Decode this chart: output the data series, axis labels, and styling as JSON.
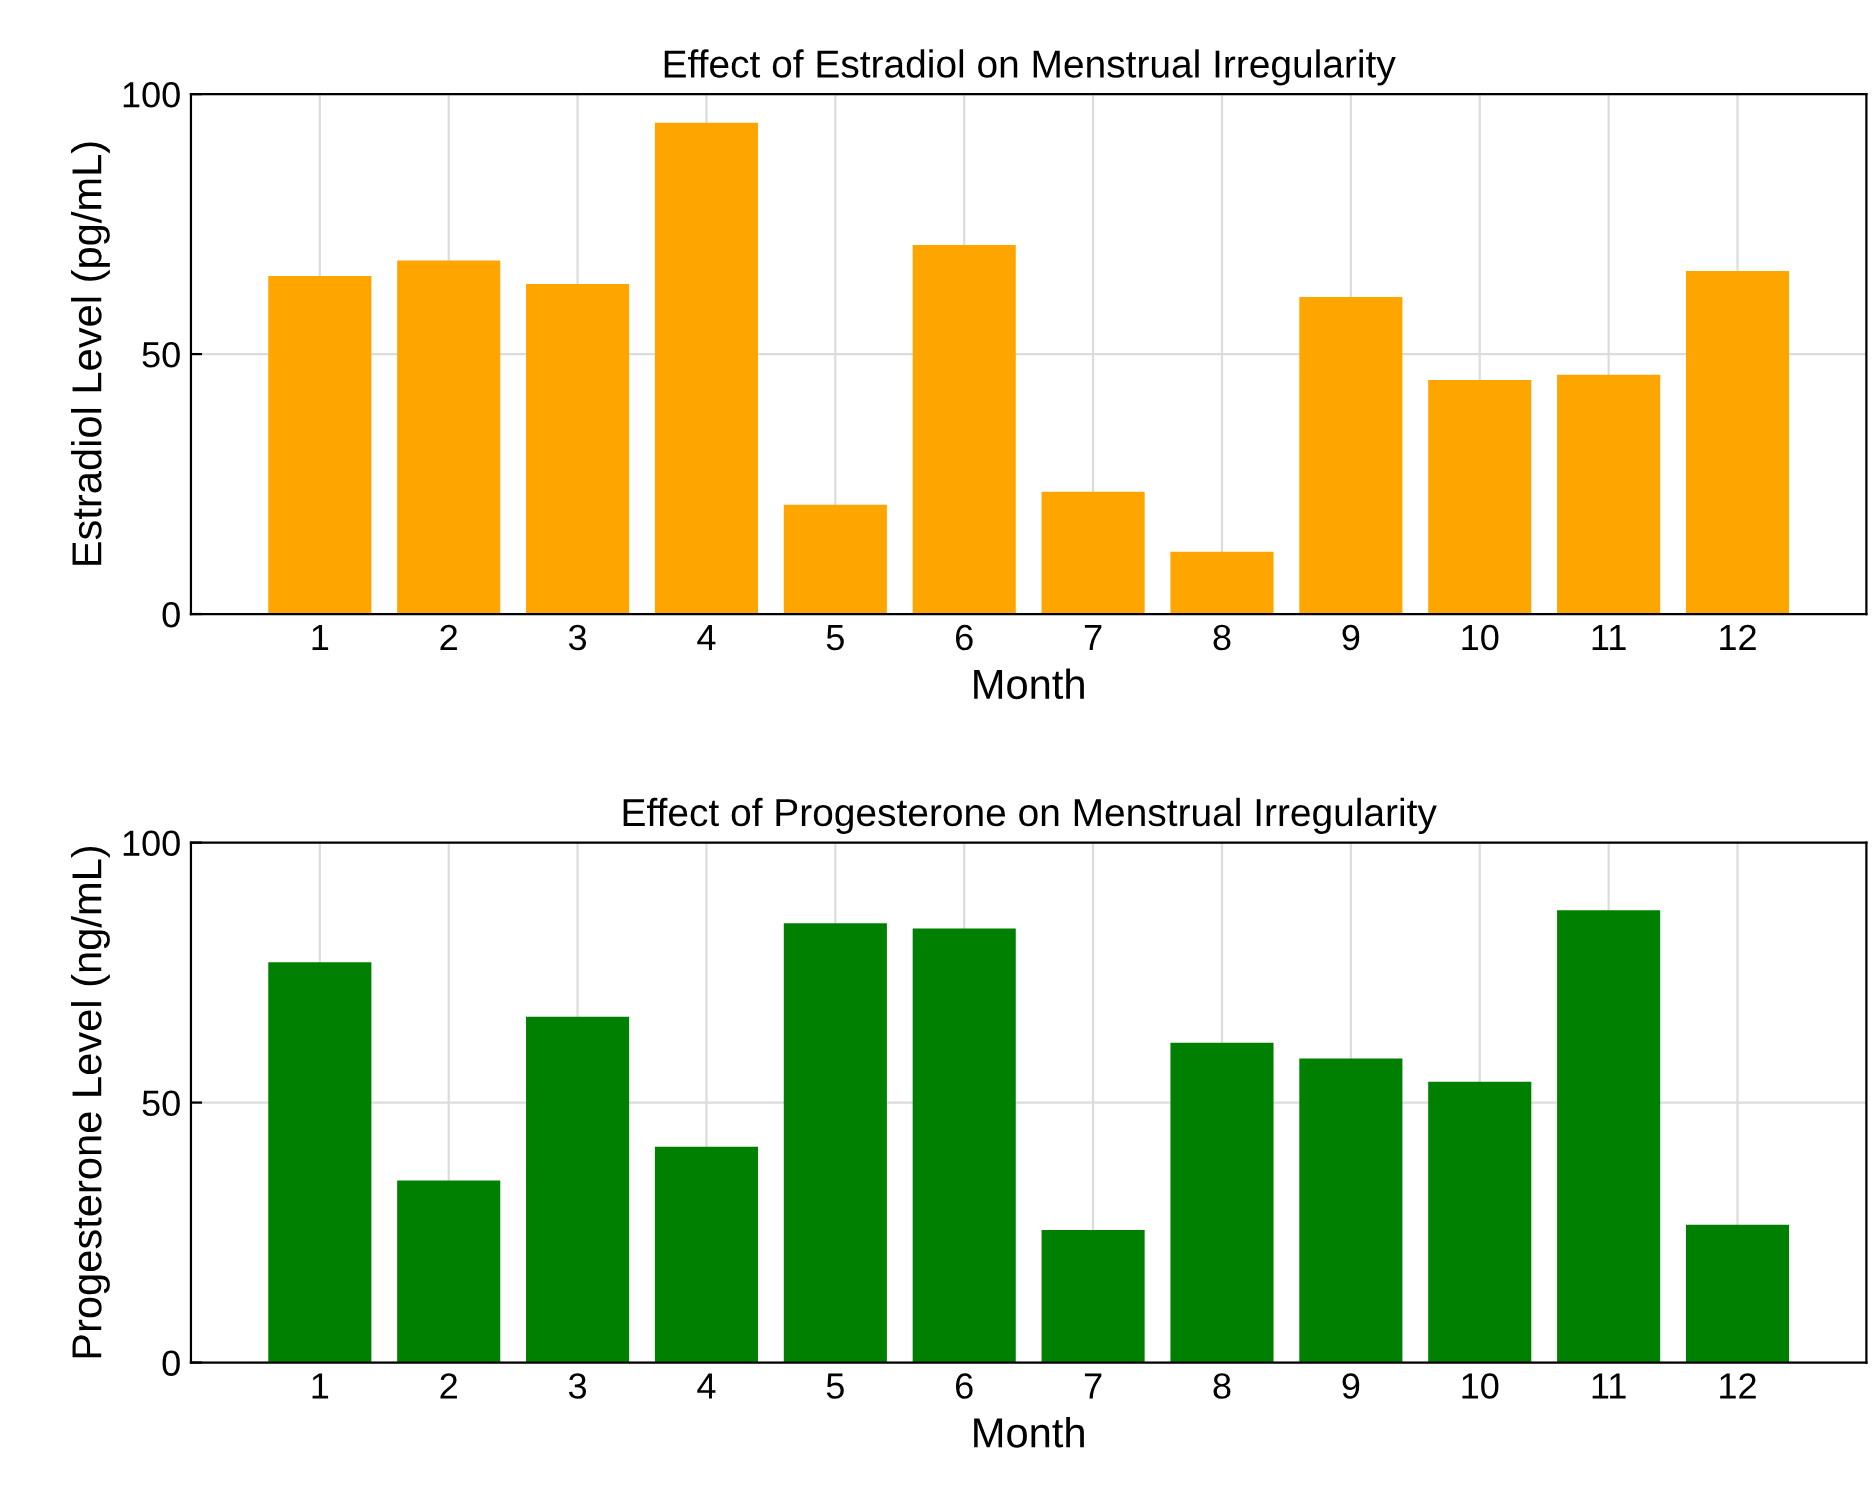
{
  "chart_data": [
    {
      "type": "bar",
      "title": "Effect of Estradiol on Menstrual Irregularity",
      "xlabel": "Month",
      "ylabel": "Estradiol Level (pg/mL)",
      "x": [
        1,
        2,
        3,
        4,
        5,
        6,
        7,
        8,
        9,
        10,
        11,
        12
      ],
      "xlim": [
        0,
        13
      ],
      "xticks": [
        1,
        2,
        3,
        4,
        5,
        6,
        7,
        8,
        9,
        10,
        11,
        12
      ],
      "ylim": [
        0,
        100
      ],
      "yticks": [
        0,
        50,
        100
      ],
      "grid": true,
      "series": [
        {
          "color": "#ffa500",
          "values": [
            65,
            68,
            63.5,
            94.5,
            21,
            71,
            23.5,
            12,
            61,
            45,
            46,
            66
          ]
        }
      ]
    },
    {
      "type": "bar",
      "title": "Effect of Progesterone on Menstrual Irregularity",
      "xlabel": "Month",
      "ylabel": "Progesterone Level (ng/mL)",
      "x": [
        1,
        2,
        3,
        4,
        5,
        6,
        7,
        8,
        9,
        10,
        11,
        12
      ],
      "xlim": [
        0,
        13
      ],
      "xticks": [
        1,
        2,
        3,
        4,
        5,
        6,
        7,
        8,
        9,
        10,
        11,
        12
      ],
      "ylim": [
        0,
        100
      ],
      "yticks": [
        0,
        50,
        100
      ],
      "grid": true,
      "series": [
        {
          "color": "#008000",
          "values": [
            77,
            35,
            66.5,
            41.5,
            84.5,
            83.5,
            25.5,
            61.5,
            58.5,
            54,
            87,
            26.5
          ]
        }
      ]
    }
  ]
}
